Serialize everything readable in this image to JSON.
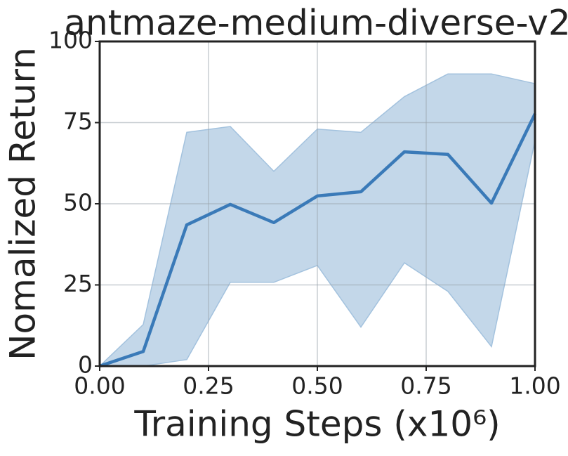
{
  "chart_data": {
    "type": "line",
    "title": "antmaze-medium-diverse-v2",
    "x_label": "Training Steps (x10⁶)",
    "y_label": "Nomalized Return",
    "x": [
      0,
      0.1,
      0.2,
      0.3,
      0.4,
      0.5,
      0.6,
      0.7,
      0.8,
      0.9,
      1.0
    ],
    "series": [
      {
        "color": "#3a7ab8",
        "band_color": "#c3d7e9",
        "values": [
          0,
          4.5,
          43.5,
          49.8,
          44.2,
          52.4,
          53.7,
          66,
          65.2,
          50.2,
          77.7
        ],
        "band_upper": [
          0,
          12.8,
          72,
          73.8,
          60,
          73,
          72,
          83,
          90,
          90,
          87
        ],
        "band_lower": [
          0,
          0,
          2,
          25.8,
          25.8,
          31,
          12,
          31.8,
          23,
          6,
          69.5
        ]
      }
    ],
    "xlim": [
      0,
      1
    ],
    "ylim": [
      0,
      100
    ],
    "xticks": [
      {
        "value": 0,
        "label": "0.00"
      },
      {
        "value": 0.25,
        "label": "0.25"
      },
      {
        "value": 0.5,
        "label": "0.50"
      },
      {
        "value": 0.75,
        "label": "0.75"
      },
      {
        "value": 1,
        "label": "1.00"
      }
    ],
    "yticks": [
      0,
      25,
      50,
      75,
      100
    ],
    "grid": true
  }
}
